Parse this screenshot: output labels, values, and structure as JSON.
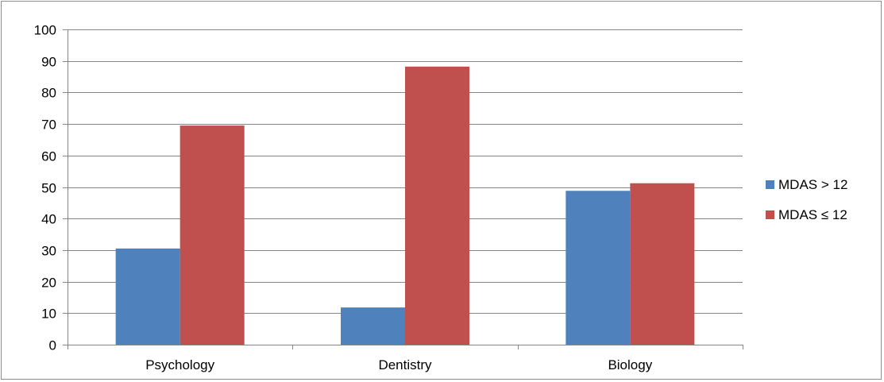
{
  "chart_data": {
    "type": "bar",
    "categories": [
      "Psychology",
      "Dentistry",
      "Biology"
    ],
    "series": [
      {
        "name": "MDAS > 12",
        "values": [
          30.5,
          11.8,
          48.8
        ],
        "color": "#4f81bd"
      },
      {
        "name": "MDAS ≤ 12",
        "values": [
          69.5,
          88.2,
          51.2
        ],
        "color": "#c0504d"
      }
    ],
    "title": "",
    "xlabel": "",
    "ylabel": "",
    "ylim": [
      0,
      100
    ],
    "yticks": [
      "0",
      "10",
      "20",
      "30",
      "40",
      "50",
      "60",
      "70",
      "80",
      "90",
      "100"
    ],
    "grid": true,
    "legend": "right"
  }
}
